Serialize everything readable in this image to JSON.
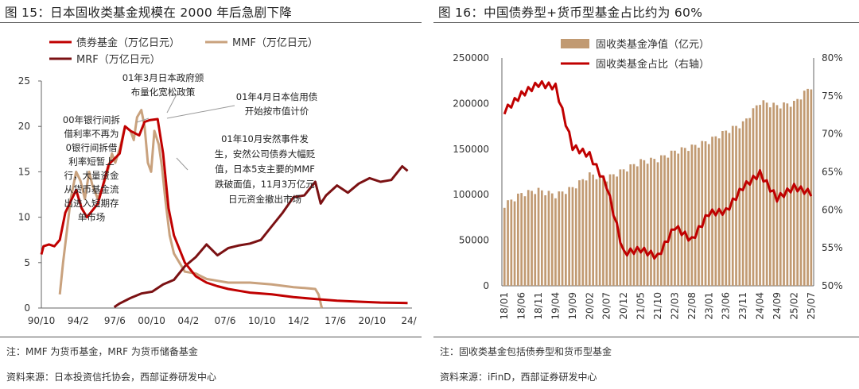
{
  "left": {
    "title": "图 15：日本固收类基金规模在 2000 年后急剧下降",
    "note": "注：MMF 为货币基金，MRF 为货币储备基金",
    "source": "资料来源：日本投资信托协会，西部证券研发中心"
  },
  "right": {
    "title": "图 16：中国债券型+货币型基金占比约为 60%",
    "note": "注：固收类基金包括债券型和货币型基金",
    "source": "资料来源：iFinD，西部证券研发中心"
  },
  "colors": {
    "bond": "#c00000",
    "mmf": "#c9a27e",
    "mrf": "#7b1113",
    "bars": "#c19a72",
    "share": "#c00000"
  },
  "chart_data": [
    {
      "type": "line",
      "title": "日本固收类基金规模在 2000 年后急剧下降",
      "xlabel": "",
      "ylabel": "",
      "ylim": [
        0,
        25
      ],
      "x_ticks": [
        "90/10",
        "94/2",
        "97/6",
        "00/10",
        "04/2",
        "07/6",
        "10/10",
        "14/2",
        "17/6",
        "20/10",
        "24/"
      ],
      "y_ticks": [
        "0",
        "5",
        "10",
        "15",
        "20",
        "25"
      ],
      "legend_position": "top-left",
      "annotations": [
        [
          "00年银行间拆",
          "借利率不再为",
          "0银行间拆借",
          "利率短暂上",
          "行，大量资金",
          "从货币基金流",
          "出进入短期存",
          "单市场"
        ],
        [
          "01年3月日本政府颁",
          "布量化宽松政策"
        ],
        [
          "01年4月日本信用债",
          "开始按市值计价"
        ],
        [
          "01年10月安然事件发",
          "生，安然公司债券大幅贬",
          "值，日本5支主要的MMF",
          "跌破面值，11月3万亿元",
          "日元资金撤出市场"
        ]
      ],
      "series": [
        {
          "name": "债券基金（万亿日元）",
          "x": [
            1990.8,
            1991,
            1991.5,
            1992,
            1992.5,
            1993,
            1994,
            1994.5,
            1995,
            1996,
            1997,
            1998,
            1998.5,
            1999,
            1999.8,
            2000.3,
            2000.8,
            2001.5,
            2002,
            2002.5,
            2003,
            2004,
            2005,
            2006,
            2007,
            2008,
            2009,
            2010,
            2012,
            2014,
            2016,
            2018,
            2020,
            2022,
            2024.5
          ],
          "y": [
            5.9,
            6.8,
            7.0,
            6.8,
            7.5,
            10.5,
            13.0,
            11.0,
            10.0,
            11.5,
            15.8,
            17.0,
            20.0,
            19.5,
            19.0,
            20.5,
            20.7,
            20.8,
            17.0,
            11.0,
            8.0,
            5.0,
            3.5,
            2.8,
            2.4,
            2.1,
            1.9,
            1.7,
            1.5,
            1.2,
            1.0,
            0.8,
            0.7,
            0.6,
            0.55
          ]
        },
        {
          "name": "MMF（万亿日元）",
          "x": [
            1992.5,
            1992.8,
            1993.2,
            1993.5,
            1994,
            1994.4,
            1994.8,
            1995.2,
            1995.5,
            1996,
            1996.5,
            1997,
            1997.3,
            1997.6,
            1998,
            1998.5,
            1999,
            1999.3,
            1999.6,
            2000,
            2000.3,
            2000.6,
            2000.9,
            2001.2,
            2001.6,
            2001.9,
            2002.2,
            2002.6,
            2003,
            2003.5,
            2004,
            2005,
            2006,
            2007,
            2008,
            2010,
            2012,
            2014,
            2015,
            2016,
            2016.3,
            2016.6
          ],
          "y": [
            1.5,
            5.0,
            9.0,
            12.0,
            15.0,
            14.0,
            12.0,
            15.0,
            13.5,
            12.0,
            13.5,
            15.5,
            17.0,
            16.0,
            17.5,
            20.0,
            19.5,
            18.5,
            21.0,
            21.8,
            20.0,
            16.0,
            15.0,
            19.5,
            18.0,
            15.5,
            12.0,
            8.0,
            6.0,
            5.0,
            4.0,
            3.8,
            3.2,
            3.0,
            2.8,
            2.8,
            2.6,
            2.3,
            2.2,
            2.1,
            1.5,
            0.0
          ]
        },
        {
          "name": "MRF（万亿日元）",
          "x": [
            1997.5,
            1998,
            1999,
            2000,
            2001,
            2002,
            2003,
            2004,
            2005,
            2006,
            2007,
            2008,
            2009,
            2010,
            2011,
            2012,
            2013,
            2014,
            2015,
            2016,
            2016.5,
            2017,
            2018,
            2019,
            2020,
            2021,
            2022,
            2023,
            2024,
            2024.5
          ],
          "y": [
            0.1,
            0.5,
            1.1,
            1.6,
            1.8,
            2.6,
            3.1,
            4.6,
            5.6,
            7.0,
            5.8,
            6.6,
            6.9,
            7.1,
            7.5,
            9.0,
            10.5,
            12.2,
            12.4,
            13.9,
            11.5,
            12.4,
            13.5,
            12.7,
            13.7,
            14.3,
            13.9,
            14.1,
            15.6,
            15.1
          ]
        }
      ]
    },
    {
      "type": "bar",
      "title": "中国债券型+货币型基金占比约为 60%",
      "xlabel": "",
      "ylabel": "",
      "ylim": [
        0,
        250000
      ],
      "y2lim": [
        0.5,
        0.8
      ],
      "legend_position": "top-center",
      "categories": [
        "18/01",
        "18/06",
        "18/11",
        "19/04",
        "19/09",
        "20/02",
        "20/07",
        "20/12",
        "21/05",
        "21/10",
        "22/03",
        "22/08",
        "23/01",
        "23/06",
        "23/11",
        "24/04",
        "24/09",
        "25/02",
        "25/07"
      ],
      "y_ticks": [
        "0",
        "50000",
        "100000",
        "150000",
        "200000",
        "250000"
      ],
      "y2_ticks": [
        "50%",
        "55%",
        "60%",
        "65%",
        "70%",
        "75%",
        "80%"
      ],
      "series": [
        {
          "name": "固收类基金净值（亿元）",
          "axis": "left",
          "values": [
            89000,
            101000,
            105000,
            99500,
            107500,
            122000,
            118000,
            127000,
            136500,
            139000,
            147500,
            152500,
            159000,
            169500,
            178000,
            202000,
            197500,
            200500,
            219000
          ]
        },
        {
          "name": "固收类基金占比（右轴）",
          "axis": "right",
          "values": [
            0.73,
            0.752,
            0.766,
            0.762,
            0.683,
            0.672,
            0.632,
            0.543,
            0.548,
            0.538,
            0.578,
            0.56,
            0.596,
            0.598,
            0.63,
            0.648,
            0.615,
            0.63,
            0.622
          ]
        }
      ]
    }
  ]
}
